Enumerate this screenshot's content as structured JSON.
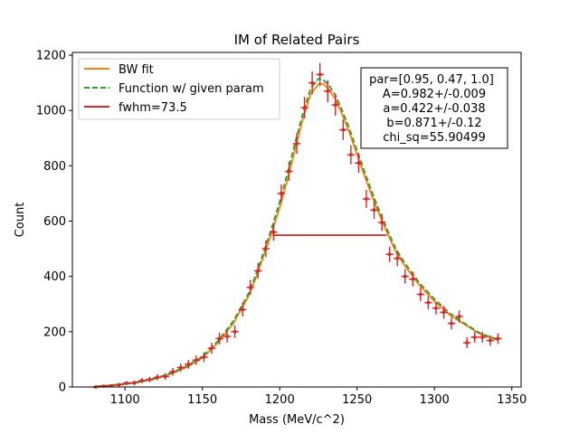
{
  "chart_data": {
    "type": "scatter",
    "title": "IM of Related Pairs",
    "xlabel": "Mass (MeV/c^2)",
    "ylabel": "Count",
    "xlim": [
      1066,
      1356
    ],
    "ylim": [
      0,
      1210
    ],
    "xticks": [
      1100,
      1150,
      1200,
      1250,
      1300,
      1350
    ],
    "yticks": [
      0,
      200,
      400,
      600,
      800,
      1000,
      1200
    ],
    "grid": false,
    "legend": {
      "placement": "top-left",
      "entries": [
        {
          "label": "BW fit",
          "color": "#ff7f0e",
          "style": "solid"
        },
        {
          "label": "Function w/ given param",
          "color": "#2ca02c",
          "style": "dashed"
        },
        {
          "label": "fwhm=73.5",
          "color": "#d62728",
          "style": "solid"
        }
      ]
    },
    "annotation": {
      "placement": "top-right",
      "lines": [
        "par=[0.95, 0.47, 1.0]",
        "A=0.982+/-0.009",
        "a=0.422+/-0.038",
        "b=0.871+/-0.12",
        "chi_sq=55.90499"
      ]
    },
    "fwhm_line": {
      "x_start": 1195.4,
      "x_end": 1268.9,
      "y": 549,
      "color": "#d62728"
    },
    "series": [
      {
        "name": "BW fit",
        "kind": "line",
        "color": "#ff7f0e",
        "x": [
          1081,
          1090,
          1100,
          1110,
          1120,
          1130,
          1140,
          1150,
          1160,
          1170,
          1180,
          1185,
          1190,
          1195,
          1200,
          1205,
          1210,
          1215,
          1220,
          1225,
          1228,
          1232,
          1236,
          1240,
          1245,
          1250,
          1255,
          1260,
          1265,
          1270,
          1275,
          1280,
          1290,
          1300,
          1310,
          1320,
          1330,
          1341
        ],
        "y": [
          2,
          5,
          10,
          18,
          30,
          48,
          72,
          105,
          160,
          230,
          330,
          400,
          480,
          560,
          650,
          750,
          860,
          970,
          1060,
          1095,
          1097,
          1075,
          1040,
          990,
          920,
          840,
          760,
          685,
          615,
          550,
          490,
          445,
          370,
          310,
          260,
          225,
          190,
          170
        ]
      },
      {
        "name": "Function w/ given param",
        "kind": "line",
        "color": "#2ca02c",
        "x": [
          1081,
          1090,
          1100,
          1110,
          1120,
          1130,
          1140,
          1150,
          1160,
          1170,
          1180,
          1185,
          1190,
          1195,
          1200,
          1205,
          1210,
          1215,
          1220,
          1225,
          1228,
          1232,
          1236,
          1240,
          1245,
          1250,
          1255,
          1260,
          1265,
          1270,
          1275,
          1280,
          1290,
          1300,
          1310,
          1320,
          1330,
          1341
        ],
        "y": [
          2,
          6,
          11,
          20,
          32,
          51,
          76,
          110,
          166,
          238,
          340,
          412,
          494,
          578,
          670,
          773,
          885,
          990,
          1080,
          1115,
          1112,
          1090,
          1055,
          1005,
          935,
          855,
          775,
          700,
          628,
          562,
          500,
          455,
          378,
          318,
          266,
          228,
          193,
          172
        ]
      },
      {
        "name": "data",
        "kind": "points",
        "color": "#d62728",
        "x": [
          1081,
          1086,
          1091,
          1096,
          1101,
          1106,
          1111,
          1116,
          1121,
          1126,
          1131,
          1136,
          1141,
          1146,
          1151,
          1156,
          1161,
          1166,
          1171,
          1176,
          1181,
          1186,
          1191,
          1196,
          1201,
          1206,
          1211,
          1216,
          1221,
          1226,
          1231,
          1236,
          1241,
          1246,
          1251,
          1256,
          1261,
          1266,
          1271,
          1276,
          1281,
          1286,
          1291,
          1296,
          1301,
          1306,
          1311,
          1316,
          1321,
          1326,
          1331,
          1336,
          1341
        ],
        "y": [
          0,
          3,
          5,
          8,
          14,
          15,
          23,
          27,
          35,
          38,
          55,
          70,
          82,
          97,
          108,
          140,
          175,
          183,
          200,
          280,
          360,
          420,
          500,
          560,
          700,
          780,
          880,
          1010,
          1100,
          1130,
          1070,
          1020,
          930,
          840,
          810,
          680,
          640,
          595,
          480,
          465,
          400,
          390,
          335,
          305,
          285,
          270,
          230,
          255,
          160,
          180,
          180,
          168,
          175
        ],
        "yerr": [
          3,
          4,
          5,
          6,
          7,
          8,
          9,
          10,
          11,
          12,
          14,
          15,
          16,
          17,
          18,
          20,
          21,
          22,
          23,
          25,
          27,
          28,
          30,
          31,
          33,
          35,
          37,
          39,
          41,
          42,
          40,
          39,
          37,
          35,
          35,
          33,
          32,
          31,
          28,
          28,
          26,
          26,
          25,
          24,
          23,
          23,
          22,
          22,
          20,
          20,
          20,
          19,
          19
        ],
        "xerr": 2.5
      }
    ]
  }
}
